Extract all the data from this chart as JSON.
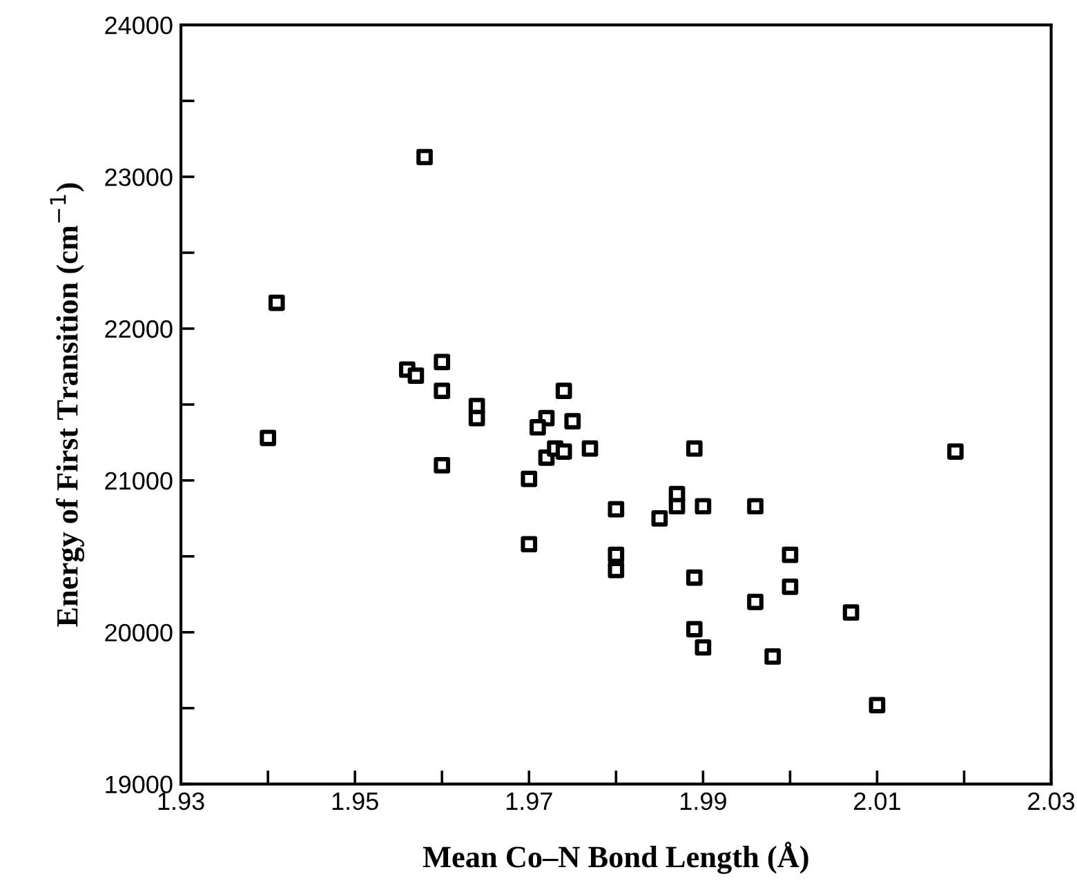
{
  "chart_data": {
    "type": "scatter",
    "xlabel": "Mean Co–N Bond Length (Å)",
    "ylabel": "Energy of First Transition (cm$^{−1}$)",
    "x": [
      1.958,
      1.941,
      1.94,
      1.956,
      1.957,
      1.96,
      1.96,
      1.964,
      1.964,
      1.96,
      1.974,
      1.972,
      1.971,
      1.975,
      1.972,
      1.973,
      1.974,
      1.977,
      1.97,
      1.97,
      1.98,
      1.98,
      1.98,
      1.985,
      1.987,
      1.987,
      1.989,
      1.99,
      1.989,
      1.989,
      2.019,
      1.996,
      2.0,
      2.0,
      1.996,
      2.007,
      1.99,
      1.998,
      2.01
    ],
    "values": [
      23130,
      22170,
      21280,
      21730,
      21690,
      21780,
      21590,
      21490,
      21410,
      21100,
      21590,
      21410,
      21350,
      21390,
      21150,
      21210,
      21190,
      21210,
      21010,
      20580,
      20810,
      20510,
      20410,
      20750,
      20910,
      20830,
      21210,
      20830,
      20360,
      20020,
      21190,
      20830,
      20510,
      20300,
      20200,
      20130,
      19900,
      19840,
      19520
    ],
    "color": "#000000",
    "marker": "square",
    "xlim": [
      1.93,
      2.03
    ],
    "xticks": [
      1.93,
      {
        "value": 1.94,
        "label": null
      },
      1.95,
      {
        "value": 1.96,
        "label": null
      },
      1.97,
      {
        "value": 1.98,
        "label": null
      },
      1.99,
      {
        "value": 2.0,
        "label": null
      },
      2.01,
      {
        "value": 2.02,
        "label": null
      },
      2.03
    ],
    "ylim": [
      19000,
      24000
    ],
    "yticks": [
      19000,
      {
        "value": 19500,
        "label": null
      },
      20000,
      {
        "value": 20500,
        "label": null
      },
      21000,
      {
        "value": 21500,
        "label": null
      },
      22000,
      {
        "value": 22500,
        "label": null
      },
      23000,
      {
        "value": 23500,
        "label": null
      },
      24000
    ],
    "grid": false,
    "legend": false
  }
}
